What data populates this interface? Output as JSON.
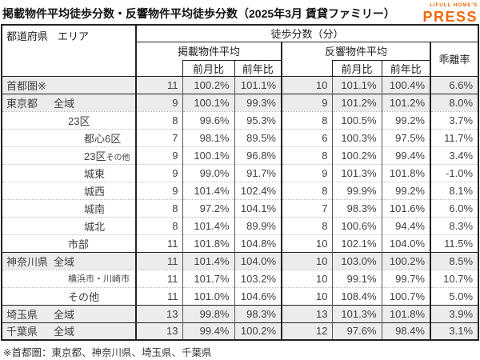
{
  "title": "掲載物件平均徒歩分数・反響物件平均徒歩分数（2025年3月 賃貸ファミリー）",
  "logo": {
    "top": "LIFULL HOME'S",
    "bottom": "PRESS",
    "color": "#f2690d"
  },
  "header": {
    "pref_label": "都道府県",
    "area_label": "エリア",
    "group_label": "徒歩分数（分）",
    "listed_label": "掲載物件平均",
    "response_label": "反響物件平均",
    "mom_label": "前月比",
    "yoy_label": "前年比",
    "divergence_label": "乖離率"
  },
  "rows": [
    {
      "pref": "首都圏※",
      "area": "",
      "indent": 0,
      "shaded": true,
      "sep": "none",
      "v": [
        "11",
        "100.2%",
        "101.1%",
        "10",
        "101.1%",
        "100.4%",
        "6.6%"
      ]
    },
    {
      "pref": "東京都",
      "area": "全域",
      "indent": 0,
      "shaded": true,
      "sep": "solid",
      "v": [
        "9",
        "100.1%",
        "99.3%",
        "9",
        "101.2%",
        "101.2%",
        "8.0%"
      ]
    },
    {
      "pref": "",
      "area": "23区",
      "indent": 1,
      "shaded": false,
      "sep": "dotted",
      "v": [
        "8",
        "99.6%",
        "95.3%",
        "8",
        "100.5%",
        "99.2%",
        "3.7%"
      ]
    },
    {
      "pref": "",
      "area": "都心6区",
      "indent": 2,
      "shaded": false,
      "sep": "dotted",
      "v": [
        "7",
        "98.1%",
        "89.5%",
        "6",
        "100.3%",
        "97.5%",
        "11.7%"
      ]
    },
    {
      "pref": "",
      "area": "23区",
      "area_suffix": "その他",
      "indent": 2,
      "shaded": false,
      "sep": "dotted",
      "v": [
        "9",
        "100.1%",
        "96.8%",
        "8",
        "100.2%",
        "99.4%",
        "3.4%"
      ]
    },
    {
      "pref": "",
      "area": "城東",
      "indent": 2,
      "shaded": false,
      "sep": "dotted",
      "v": [
        "9",
        "99.0%",
        "91.7%",
        "9",
        "101.3%",
        "101.8%",
        "-1.0%"
      ]
    },
    {
      "pref": "",
      "area": "城西",
      "indent": 2,
      "shaded": false,
      "sep": "dotted",
      "v": [
        "9",
        "101.4%",
        "102.4%",
        "8",
        "99.9%",
        "99.2%",
        "8.1%"
      ]
    },
    {
      "pref": "",
      "area": "城南",
      "indent": 2,
      "shaded": false,
      "sep": "dotted",
      "v": [
        "8",
        "97.2%",
        "104.1%",
        "7",
        "98.3%",
        "101.6%",
        "6.0%"
      ]
    },
    {
      "pref": "",
      "area": "城北",
      "indent": 2,
      "shaded": false,
      "sep": "dotted",
      "v": [
        "8",
        "101.4%",
        "89.9%",
        "8",
        "100.6%",
        "94.4%",
        "8.3%"
      ]
    },
    {
      "pref": "",
      "area": "市部",
      "indent": 1,
      "shaded": false,
      "sep": "dotted",
      "v": [
        "11",
        "101.8%",
        "104.8%",
        "10",
        "102.1%",
        "104.0%",
        "11.5%"
      ]
    },
    {
      "pref": "神奈川県",
      "area": "全域",
      "indent": 0,
      "shaded": true,
      "sep": "solid",
      "v": [
        "11",
        "101.4%",
        "104.0%",
        "10",
        "103.0%",
        "100.2%",
        "8.5%"
      ]
    },
    {
      "pref": "",
      "area": "横浜市・川崎市",
      "indent": 1,
      "shaded": false,
      "small": true,
      "sep": "dotted",
      "v": [
        "11",
        "101.7%",
        "103.2%",
        "10",
        "99.1%",
        "99.7%",
        "10.7%"
      ]
    },
    {
      "pref": "",
      "area": "その他",
      "indent": 1,
      "shaded": false,
      "sep": "dotted",
      "v": [
        "11",
        "101.0%",
        "104.6%",
        "10",
        "108.4%",
        "100.7%",
        "5.0%"
      ]
    },
    {
      "pref": "埼玉県",
      "area": "全域",
      "indent": 0,
      "shaded": true,
      "sep": "solid",
      "v": [
        "13",
        "99.8%",
        "98.3%",
        "13",
        "101.3%",
        "101.8%",
        "3.9%"
      ]
    },
    {
      "pref": "千葉県",
      "area": "全域",
      "indent": 0,
      "shaded": true,
      "sep": "solid",
      "v": [
        "13",
        "99.4%",
        "100.2%",
        "12",
        "97.6%",
        "98.4%",
        "3.1%"
      ]
    }
  ],
  "column_names": [
    "listed-avg",
    "listed-mom",
    "listed-yoy",
    "response-avg",
    "response-mom",
    "response-yoy",
    "divergence-rate"
  ],
  "footnote": "※首都圏：東京都、神奈川県、埼玉県、千葉県"
}
